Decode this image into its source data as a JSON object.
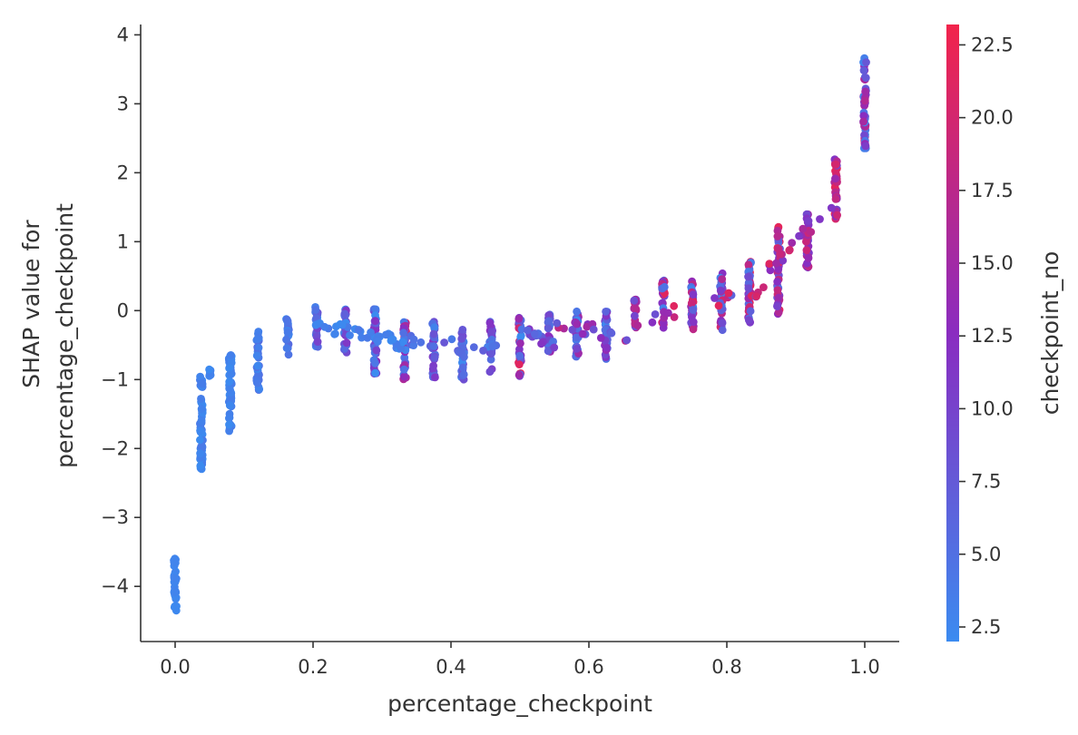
{
  "chart_data": {
    "type": "scatter",
    "title": "",
    "xlabel": "percentage_checkpoint",
    "ylabel_lines": [
      "SHAP value for",
      "percentage_checkpoint"
    ],
    "xlim": [
      -0.05,
      1.05
    ],
    "ylim": [
      -4.8,
      4.15
    ],
    "x_ticks": [
      0.0,
      0.2,
      0.4,
      0.6,
      0.8,
      1.0
    ],
    "x_tick_labels": [
      "0.0",
      "0.2",
      "0.4",
      "0.6",
      "0.8",
      "1.0"
    ],
    "y_ticks": [
      -4,
      -3,
      -2,
      -1,
      0,
      1,
      2,
      3,
      4
    ],
    "y_tick_labels": [
      "−4",
      "−3",
      "−2",
      "−1",
      "0",
      "1",
      "2",
      "3",
      "4"
    ],
    "grid": false,
    "colorbar": {
      "label": "checkpoint_no",
      "range": [
        2.0,
        23.2
      ],
      "ticks": [
        2.5,
        5.0,
        7.5,
        10.0,
        12.5,
        15.0,
        17.5,
        20.0,
        22.5
      ],
      "tick_labels": [
        "2.5",
        "5.0",
        "7.5",
        "10.0",
        "12.5",
        "15.0",
        "17.5",
        "20.0",
        "22.5"
      ],
      "color_low": "#3b8bf0",
      "color_mid": "#8a2cc0",
      "color_high": "#f2244b"
    },
    "series": [
      {
        "columns": [
          {
            "x": 0.0,
            "y": [
              -4.35,
              -3.55
            ],
            "c": [
              2,
              3
            ]
          },
          {
            "x": 0.038,
            "y": [
              -2.3,
              -0.95
            ],
            "c": [
              2,
              4
            ]
          },
          {
            "x": 0.05,
            "y": [
              -1.0,
              -0.85
            ],
            "c": [
              2,
              3
            ]
          },
          {
            "x": 0.08,
            "y": [
              -1.8,
              -0.6
            ],
            "c": [
              2,
              4
            ]
          },
          {
            "x": 0.12,
            "y": [
              -1.15,
              -0.28
            ],
            "c": [
              2,
              6
            ]
          },
          {
            "x": 0.163,
            "y": [
              -0.65,
              -0.12
            ],
            "c": [
              2,
              6
            ]
          },
          {
            "x": 0.205,
            "y": [
              -0.55,
              0.08
            ],
            "c": [
              2,
              10
            ]
          },
          {
            "x": 0.247,
            "y": [
              -0.62,
              0.02
            ],
            "c": [
              2,
              12
            ]
          },
          {
            "x": 0.29,
            "y": [
              -0.92,
              0.08
            ],
            "c": [
              2,
              14
            ]
          },
          {
            "x": 0.333,
            "y": [
              -1.0,
              -0.15
            ],
            "c": [
              4,
              22
            ]
          },
          {
            "x": 0.375,
            "y": [
              -0.98,
              -0.15
            ],
            "c": [
              3,
              12
            ]
          },
          {
            "x": 0.417,
            "y": [
              -1.05,
              -0.2
            ],
            "c": [
              2,
              10
            ]
          },
          {
            "x": 0.458,
            "y": [
              -0.9,
              -0.15
            ],
            "c": [
              3,
              14
            ]
          },
          {
            "x": 0.5,
            "y": [
              -0.95,
              -0.1
            ],
            "c": [
              2,
              22
            ]
          },
          {
            "x": 0.542,
            "y": [
              -0.6,
              -0.05
            ],
            "c": [
              4,
              16
            ]
          },
          {
            "x": 0.583,
            "y": [
              -0.75,
              0.0
            ],
            "c": [
              2,
              16
            ]
          },
          {
            "x": 0.625,
            "y": [
              -0.7,
              0.0
            ],
            "c": [
              2,
              14
            ]
          },
          {
            "x": 0.667,
            "y": [
              -0.3,
              0.2
            ],
            "c": [
              8,
              20
            ]
          },
          {
            "x": 0.708,
            "y": [
              -0.25,
              0.45
            ],
            "c": [
              3,
              22
            ]
          },
          {
            "x": 0.75,
            "y": [
              -0.3,
              0.45
            ],
            "c": [
              3,
              22
            ]
          },
          {
            "x": 0.792,
            "y": [
              -0.3,
              0.55
            ],
            "c": [
              3,
              22
            ]
          },
          {
            "x": 0.833,
            "y": [
              -0.25,
              0.75
            ],
            "c": [
              3,
              22
            ]
          },
          {
            "x": 0.875,
            "y": [
              -0.05,
              1.25
            ],
            "c": [
              4,
              22
            ]
          },
          {
            "x": 0.917,
            "y": [
              0.6,
              1.4
            ],
            "c": [
              8,
              22
            ]
          },
          {
            "x": 0.958,
            "y": [
              1.3,
              2.2
            ],
            "c": [
              10,
              22
            ]
          },
          {
            "x": 1.0,
            "y": [
              2.3,
              3.7
            ],
            "c": [
              2,
              20
            ]
          }
        ],
        "bridges": [
          {
            "x": [
              0.185,
              0.295
            ],
            "y": [
              -0.15,
              -0.4
            ],
            "c": [
              2,
              4
            ]
          },
          {
            "x": [
              0.29,
              0.335
            ],
            "y": [
              -0.35,
              -0.5
            ],
            "c": [
              2,
              4
            ]
          },
          {
            "x": [
              0.33,
              0.475
            ],
            "y": [
              -0.4,
              -0.6
            ],
            "c": [
              3,
              8
            ]
          },
          {
            "x": [
              0.5,
              0.55
            ],
            "y": [
              -0.3,
              -0.45
            ],
            "c": [
              4,
              12
            ]
          },
          {
            "x": [
              0.54,
              0.685
            ],
            "y": [
              -0.15,
              -0.45
            ],
            "c": [
              6,
              18
            ]
          },
          {
            "x": [
              0.665,
              0.88
            ],
            "y": [
              -0.15,
              0.35
            ],
            "c": [
              6,
              22
            ]
          },
          {
            "x": [
              0.86,
              0.96
            ],
            "y": [
              0.6,
              1.6
            ],
            "c": [
              10,
              22
            ]
          }
        ]
      }
    ]
  }
}
